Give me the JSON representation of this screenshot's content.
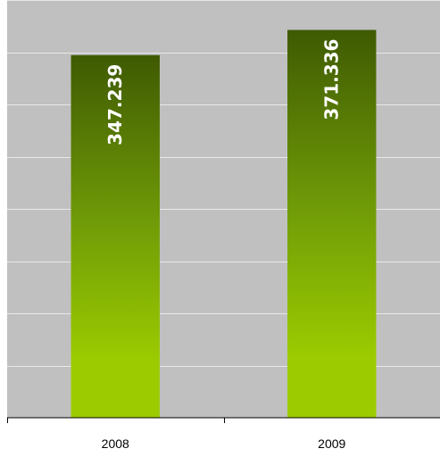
{
  "chart_data": {
    "type": "bar",
    "title": "",
    "xlabel": "",
    "ylabel": "",
    "categories": [
      "2008",
      "2009"
    ],
    "values": [
      347.239,
      371.336
    ],
    "data_labels": [
      "347.239",
      "371.336"
    ],
    "ylim": [
      0,
      400
    ],
    "grid": true,
    "legend": "none",
    "colors": {
      "plot_background": "#c0c0c0",
      "gridline": "#e8e8e8",
      "bar_top": "#3f5a02",
      "bar_mid": "#6f9a08",
      "bar_bottom": "#9ccc00",
      "value_label": "#ffffff",
      "axis": "#000000"
    }
  }
}
